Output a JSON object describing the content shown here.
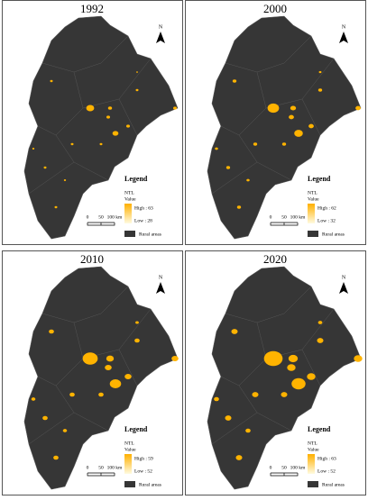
{
  "panels": [
    {
      "title": "1992",
      "north": "N",
      "legend": {
        "title": "Legend",
        "layer": "NTL",
        "field": "Value",
        "high": "High : 63",
        "low": "Low : 28",
        "rural": "Rural areas"
      },
      "scale": [
        "0",
        "50",
        "100 km"
      ]
    },
    {
      "title": "2000",
      "north": "N",
      "legend": {
        "title": "Legend",
        "layer": "NTL",
        "field": "Value",
        "high": "High : 62",
        "low": "Low : 32",
        "rural": "Rural areas"
      },
      "scale": [
        "0",
        "50",
        "100 km"
      ]
    },
    {
      "title": "2010",
      "north": "N",
      "legend": {
        "title": "Legend",
        "layer": "NTL",
        "field": "Value",
        "high": "High : 59",
        "low": "Low : 52",
        "rural": "Rural areas"
      },
      "scale": [
        "0",
        "50",
        "100 km"
      ]
    },
    {
      "title": "2020",
      "north": "N",
      "legend": {
        "title": "Legend",
        "layer": "NTL",
        "field": "Value",
        "high": "High : 63",
        "low": "Low : 52",
        "rural": "Rural areas"
      },
      "scale": [
        "0",
        "50",
        "100 km"
      ]
    }
  ]
}
